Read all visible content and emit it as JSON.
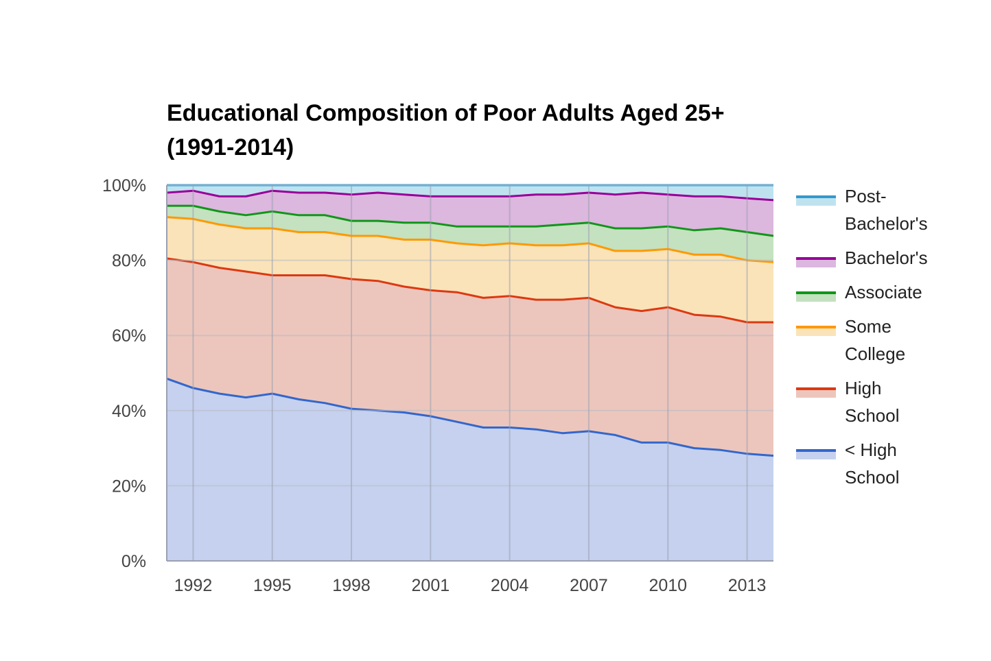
{
  "chart_data": {
    "type": "area",
    "stacked": true,
    "normalized_percent": true,
    "title": "Educational Composition of Poor Adults Aged 25+ (1991-2014)",
    "xlabel": "",
    "ylabel": "",
    "xlim": [
      1991,
      2014
    ],
    "ylim": [
      0,
      100
    ],
    "y_ticks": [
      "0%",
      "20%",
      "40%",
      "60%",
      "80%",
      "100%"
    ],
    "x_ticks": [
      "1992",
      "1995",
      "1998",
      "2001",
      "2004",
      "2007",
      "2010",
      "2013"
    ],
    "grid": true,
    "legend": "right",
    "x": [
      1991,
      1992,
      1993,
      1994,
      1995,
      1996,
      1997,
      1998,
      1999,
      2000,
      2001,
      2002,
      2003,
      2004,
      2005,
      2006,
      2007,
      2008,
      2009,
      2010,
      2011,
      2012,
      2013,
      2014
    ],
    "series": [
      {
        "name": "< High School",
        "line_color": "#3366cc",
        "fill_color": "#c5d1ee",
        "values": [
          48.5,
          46,
          44.5,
          43.5,
          44.5,
          43,
          42,
          40.5,
          40,
          39.5,
          38.5,
          37,
          35.5,
          35.5,
          35,
          34,
          34.5,
          33.5,
          31.5,
          31.5,
          30,
          29.5,
          28.5,
          28
        ]
      },
      {
        "name": "High School",
        "line_color": "#dc3912",
        "fill_color": "#ecc6bc",
        "values": [
          32,
          33.5,
          33.5,
          33.5,
          31.5,
          33,
          34,
          34.5,
          34.5,
          33.5,
          33.5,
          34.5,
          34.5,
          35,
          34.5,
          35.5,
          35.5,
          34,
          35,
          36,
          35.5,
          35.5,
          35,
          35.5
        ]
      },
      {
        "name": "Some College",
        "line_color": "#ff9900",
        "fill_color": "#fae3b8",
        "values": [
          11,
          11.5,
          11.5,
          11.5,
          12.5,
          11.5,
          11.5,
          11.5,
          12,
          12.5,
          13.5,
          13,
          14,
          14,
          14.5,
          14.5,
          14.5,
          15,
          16,
          15.5,
          16,
          16.5,
          16.5,
          16
        ]
      },
      {
        "name": "Associate",
        "line_color": "#109618",
        "fill_color": "#c4e1c0",
        "values": [
          3,
          3.5,
          3.5,
          3.5,
          4.5,
          4.5,
          4.5,
          4,
          4,
          4.5,
          4.5,
          4.5,
          5,
          4.5,
          5,
          5.5,
          5.5,
          6,
          6,
          6,
          6.5,
          7,
          7.5,
          7
        ]
      },
      {
        "name": "Bachelor's",
        "line_color": "#990099",
        "fill_color": "#dcb7de",
        "values": [
          3.5,
          4,
          4,
          5,
          5.5,
          6,
          6,
          7,
          7.5,
          7.5,
          7,
          8,
          8,
          8,
          8.5,
          8,
          8,
          9,
          9.5,
          8.5,
          9,
          8.5,
          9,
          9.5
        ]
      },
      {
        "name": "Post-Bachelor's",
        "line_color": "#3399cc",
        "fill_color": "#bfe2ef",
        "values": [
          2,
          1.5,
          3,
          3,
          1.5,
          2,
          2,
          2.5,
          2,
          2.5,
          3,
          3,
          3,
          3,
          2.5,
          2.5,
          2,
          2.5,
          2,
          2.5,
          3,
          3,
          3.5,
          4
        ]
      }
    ],
    "legend_lines": [
      {
        "series": "Post-Bachelor's",
        "lines": [
          "Post-",
          "Bachelor's"
        ]
      },
      {
        "series": "Bachelor's",
        "lines": [
          "Bachelor's"
        ]
      },
      {
        "series": "Associate",
        "lines": [
          "Associate"
        ]
      },
      {
        "series": "Some College",
        "lines": [
          "Some",
          "College"
        ]
      },
      {
        "series": "High School",
        "lines": [
          "High",
          "School"
        ]
      },
      {
        "series": "< High School",
        "lines": [
          "< High",
          "School"
        ]
      }
    ]
  }
}
